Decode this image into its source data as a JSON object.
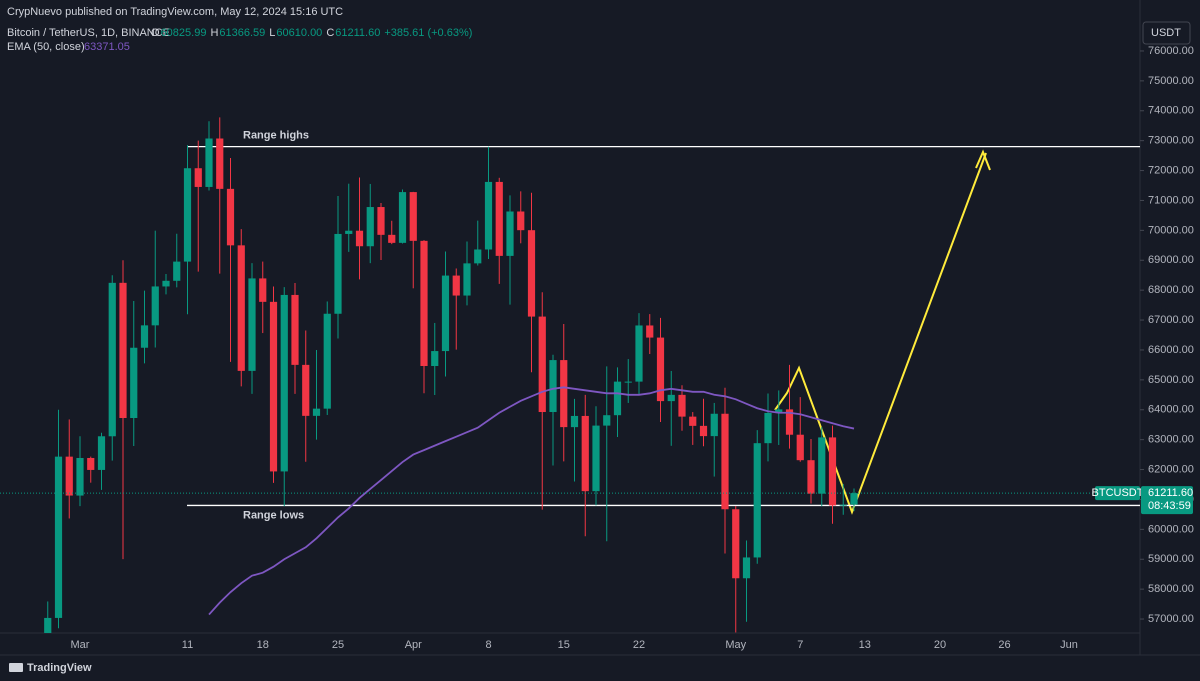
{
  "header": "CrypNuevo published on TradingView.com, May 12, 2024 15:16 UTC",
  "legend": {
    "symbol": "Bitcoin / TetherUS, 1D, BINANCE",
    "ohlc": [
      {
        "label": "O",
        "value": "60825.99"
      },
      {
        "label": "H",
        "value": "61366.59"
      },
      {
        "label": "L",
        "value": "60610.00"
      },
      {
        "label": "C",
        "value": "61211.60"
      }
    ],
    "change": "+385.61 (+0.63%)",
    "indicator": "EMA (50, close)",
    "indicator_value": "63371.05"
  },
  "currency": "USDT",
  "price_tag": {
    "symbol": "BTCUSDT",
    "price": "61211.60",
    "countdown": "08:43:59"
  },
  "footer": "TradingView",
  "chart_data": {
    "type": "candlestick",
    "categories": [
      null,
      null,
      null,
      "Mar",
      null,
      null,
      null,
      null,
      null,
      null,
      null,
      null,
      null,
      "11",
      null,
      null,
      null,
      null,
      null,
      null,
      "18",
      null,
      null,
      null,
      null,
      null,
      null,
      "25",
      null,
      null,
      null,
      null,
      null,
      null,
      "Apr",
      null,
      null,
      null,
      null,
      null,
      null,
      "8",
      null,
      null,
      null,
      null,
      null,
      null,
      "15",
      null,
      null,
      null,
      null,
      null,
      null,
      "22",
      null,
      null,
      null,
      null,
      null,
      null,
      null,
      null,
      "May",
      null,
      null,
      null,
      null,
      null,
      "7",
      null,
      null,
      null,
      null,
      null,
      "13",
      null,
      null,
      null,
      null,
      null,
      null,
      "20",
      null,
      null,
      null,
      null,
      null,
      "26",
      null,
      null,
      null,
      null,
      null,
      "Jun",
      null,
      null,
      null,
      null,
      null,
      null
    ],
    "open": [
      54476,
      57037,
      62432,
      61130,
      62387,
      61987,
      63113,
      68245,
      63724,
      66074,
      66823,
      68124,
      68313,
      68955,
      72078,
      71452,
      73072,
      71388,
      69499,
      65300,
      68393,
      67609,
      61937,
      67840,
      65501,
      63796,
      64037,
      67211,
      69880,
      69988,
      69469,
      70780,
      69850,
      69582,
      71280,
      69649,
      65463,
      65963,
      68488,
      67820,
      68896,
      69360,
      71620,
      69146,
      70631,
      70006,
      67116,
      63924,
      65661,
      63419,
      63793,
      61277,
      63470,
      63818,
      64941,
      64941,
      66819,
      66414,
      64289,
      64498,
      63770,
      63461,
      63118,
      63866,
      60672,
      58364,
      59060,
      62882,
      63892,
      64012,
      63165,
      62313,
      61193,
      63075,
      60799,
      60825.99,
      null,
      null,
      null,
      null,
      null,
      null,
      null,
      null,
      null,
      null,
      null,
      null,
      null,
      null,
      null,
      null,
      null,
      null,
      null,
      null,
      null,
      null,
      null,
      null,
      null,
      null
    ],
    "high": [
      57588,
      64000,
      63676,
      63114,
      62433,
      63231,
      68499,
      69000,
      67637,
      67985,
      69990,
      68541,
      69887,
      72850,
      73000,
      73650,
      73777,
      72419,
      70043,
      68904,
      68956,
      68124,
      68100,
      68240,
      66649,
      65999,
      67622,
      71150,
      71561,
      71769,
      71552,
      70916,
      70321,
      71366,
      71288,
      69674,
      66903,
      69291,
      68725,
      69629,
      70326,
      72797,
      71758,
      71172,
      71305,
      71256,
      67931,
      65840,
      66867,
      64365,
      64499,
      64117,
      65450,
      65419,
      65695,
      67233,
      67199,
      67075,
      65297,
      64820,
      63923,
      64370,
      64228,
      64734,
      60780,
      59625,
      63320,
      64545,
      64646,
      65500,
      64422,
      63021,
      63421,
      63469,
      61515,
      61366.59,
      null,
      null,
      null,
      null,
      null,
      null,
      null,
      null,
      null,
      null,
      null,
      null,
      null,
      null,
      null,
      null,
      null,
      null,
      null,
      null,
      null,
      null,
      null,
      null,
      null,
      null
    ],
    "low": [
      54450,
      56690,
      60364,
      60777,
      61561,
      61320,
      62300,
      59005,
      62786,
      65551,
      66082,
      67861,
      68094,
      67194,
      68620,
      71333,
      68555,
      65600,
      64780,
      64533,
      66565,
      61555,
      60775,
      64529,
      62260,
      63000,
      63825,
      66385,
      69280,
      68359,
      68903,
      69009,
      69540,
      69562,
      68062,
      64550,
      64493,
      65113,
      66011,
      67491,
      68824,
      69043,
      68210,
      67518,
      69567,
      65254,
      60660,
      62134,
      62274,
      61600,
      59768,
      60803,
      59600,
      63090,
      64227,
      64500,
      65864,
      63589,
      62794,
      63297,
      62824,
      62781,
      61765,
      59191,
      56552,
      56911,
      58848,
      62274,
      62822,
      62700,
      62261,
      60866,
      60769,
      60187,
      60487,
      60610,
      null,
      null,
      null,
      null,
      null,
      null,
      null,
      null,
      null,
      null,
      null,
      null,
      null,
      null,
      null,
      null,
      null,
      null,
      null,
      null,
      null,
      null,
      null,
      null,
      null,
      null
    ],
    "close": [
      57037,
      62432,
      61130,
      62387,
      61987,
      63113,
      68245,
      63724,
      66074,
      66823,
      68124,
      68313,
      68955,
      72078,
      71452,
      73072,
      71388,
      69499,
      65300,
      68393,
      67609,
      61937,
      67840,
      65501,
      63796,
      64037,
      67211,
      69880,
      69988,
      69469,
      70780,
      69850,
      69582,
      71280,
      69649,
      65463,
      65963,
      68488,
      67820,
      68896,
      69360,
      71620,
      69146,
      70631,
      70006,
      67116,
      63924,
      65661,
      63419,
      63793,
      61277,
      63470,
      63818,
      64941,
      64941,
      66819,
      66414,
      64289,
      64498,
      63770,
      63461,
      63118,
      63866,
      60672,
      58364,
      59060,
      62882,
      63892,
      64012,
      63165,
      62313,
      61193,
      63075,
      60799,
      60825.99,
      61211.6,
      null,
      null,
      null,
      null,
      null,
      null,
      null,
      null,
      null,
      null,
      null,
      null,
      null,
      null,
      null,
      null,
      null,
      null,
      null,
      null,
      null,
      null,
      null,
      null,
      null,
      null
    ],
    "ema": {
      "color": "#7e57c2",
      "values": [
        null,
        null,
        null,
        null,
        null,
        null,
        null,
        null,
        null,
        null,
        null,
        null,
        null,
        null,
        null,
        57150,
        57550,
        57900,
        58200,
        58450,
        58550,
        58750,
        59000,
        59200,
        59400,
        59700,
        60050,
        60400,
        60700,
        61050,
        61350,
        61650,
        61950,
        62250,
        62500,
        62650,
        62800,
        62950,
        63100,
        63250,
        63400,
        63650,
        63900,
        64100,
        64300,
        64450,
        64600,
        64700,
        64750,
        64700,
        64650,
        64600,
        64550,
        64550,
        64500,
        64500,
        64550,
        64650,
        64700,
        64650,
        64600,
        64600,
        64500,
        64450,
        64350,
        64200,
        64050,
        63950,
        63900,
        63900,
        63850,
        63750,
        63650,
        63550,
        63450,
        63371,
        null,
        null,
        null,
        null,
        null,
        null,
        null,
        null,
        null,
        null,
        null,
        null,
        null,
        null,
        null,
        null,
        null,
        null,
        null,
        null,
        null,
        null,
        null,
        null,
        null,
        null
      ]
    },
    "up_color": "#089981",
    "down_color": "#f23645",
    "ylim": [
      56600,
      76300
    ],
    "yticks": [
      {
        "value": 57000,
        "label": "57000.00"
      },
      {
        "value": 58000,
        "label": "58000.00"
      },
      {
        "value": 59000,
        "label": "59000.00"
      },
      {
        "value": 60000,
        "label": "60000.00"
      },
      {
        "value": 61000,
        "label": "61000.00"
      },
      {
        "value": 62000,
        "label": "62000.00"
      },
      {
        "value": 63000,
        "label": "63000.00"
      },
      {
        "value": 64000,
        "label": "64000.00"
      },
      {
        "value": 65000,
        "label": "65000.00"
      },
      {
        "value": 66000,
        "label": "66000.00"
      },
      {
        "value": 67000,
        "label": "67000.00"
      },
      {
        "value": 68000,
        "label": "68000.00"
      },
      {
        "value": 69000,
        "label": "69000.00"
      },
      {
        "value": 70000,
        "label": "70000.00"
      },
      {
        "value": 71000,
        "label": "71000.00"
      },
      {
        "value": 72000,
        "label": "72000.00"
      },
      {
        "value": 73000,
        "label": "73000.00"
      },
      {
        "value": 74000,
        "label": "74000.00"
      },
      {
        "value": 75000,
        "label": "75000.00"
      },
      {
        "value": 76000,
        "label": "76000.00"
      }
    ],
    "grid": false,
    "annotations": [
      {
        "text": "Range highs",
        "value": 72800
      },
      {
        "text": "Range lows",
        "value": 60800
      }
    ]
  }
}
